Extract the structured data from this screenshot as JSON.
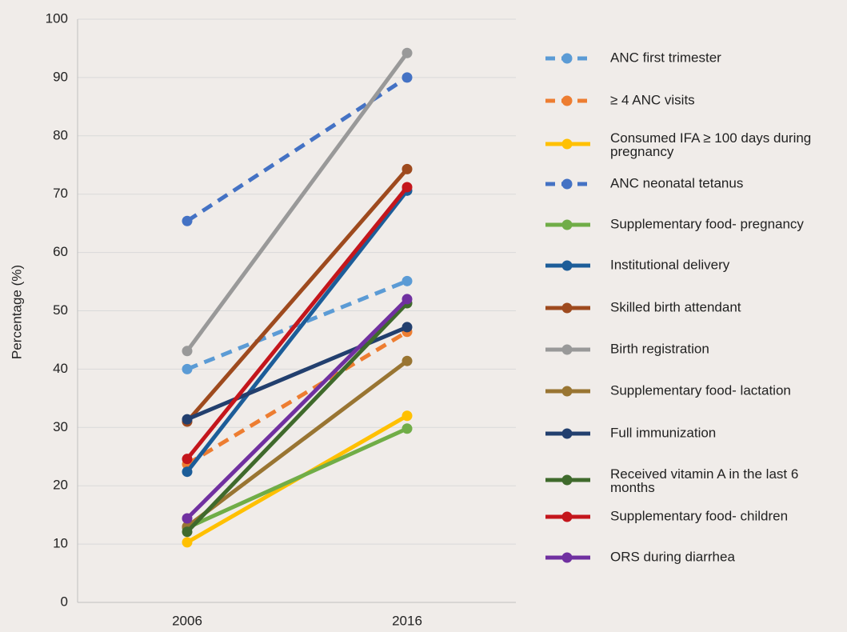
{
  "chart_data": {
    "type": "line",
    "y_label": "Percentage (%)",
    "categories": [
      "2006",
      "2016"
    ],
    "ylim": [
      0,
      100
    ],
    "yticks": [
      0,
      10,
      20,
      30,
      40,
      50,
      60,
      70,
      80,
      90,
      100
    ],
    "grid": true,
    "legend": "right",
    "series": [
      {
        "name": "ANC  first trimester",
        "color": "#5b9bd5",
        "dashed": true,
        "values": [
          40,
          55.1
        ]
      },
      {
        "name": "≥ 4 ANC visits",
        "color": "#ed7d31",
        "dashed": true,
        "values": [
          23.7,
          46.4
        ]
      },
      {
        "name": "Consumed IFA ≥ 100 days during pregnancy",
        "color": "#ffc000",
        "dashed": false,
        "values": [
          10.3,
          32
        ]
      },
      {
        "name": "ANC neonatal tetanus",
        "color": "#4472c4",
        "dashed": true,
        "values": [
          65.4,
          90
        ]
      },
      {
        "name": "Supplementary food- pregnancy",
        "color": "#70ad47",
        "dashed": false,
        "values": [
          12.8,
          29.8
        ]
      },
      {
        "name": "Institutional delivery",
        "color": "#1c5d99",
        "dashed": false,
        "values": [
          22.4,
          70.6
        ]
      },
      {
        "name": "Skilled birth attendant",
        "color": "#9e4a1e",
        "dashed": false,
        "values": [
          31,
          74.3
        ]
      },
      {
        "name": "Birth registration",
        "color": "#999999",
        "dashed": false,
        "values": [
          43.1,
          94.2
        ]
      },
      {
        "name": "Supplementary food- lactation",
        "color": "#997532",
        "dashed": false,
        "values": [
          13,
          41.4
        ]
      },
      {
        "name": "Full immunization",
        "color": "#223f6e",
        "dashed": false,
        "values": [
          31.4,
          47.2
        ]
      },
      {
        "name": "Received vitamin A  in the last 6 months",
        "color": "#3f6a2c",
        "dashed": false,
        "values": [
          12.1,
          51.3
        ]
      },
      {
        "name": "Supplementary food- children",
        "color": "#c4161c",
        "dashed": false,
        "values": [
          24.6,
          71.2
        ]
      },
      {
        "name": "ORS during diarrhea",
        "color": "#7030a0",
        "dashed": false,
        "values": [
          14.4,
          52
        ]
      }
    ]
  }
}
